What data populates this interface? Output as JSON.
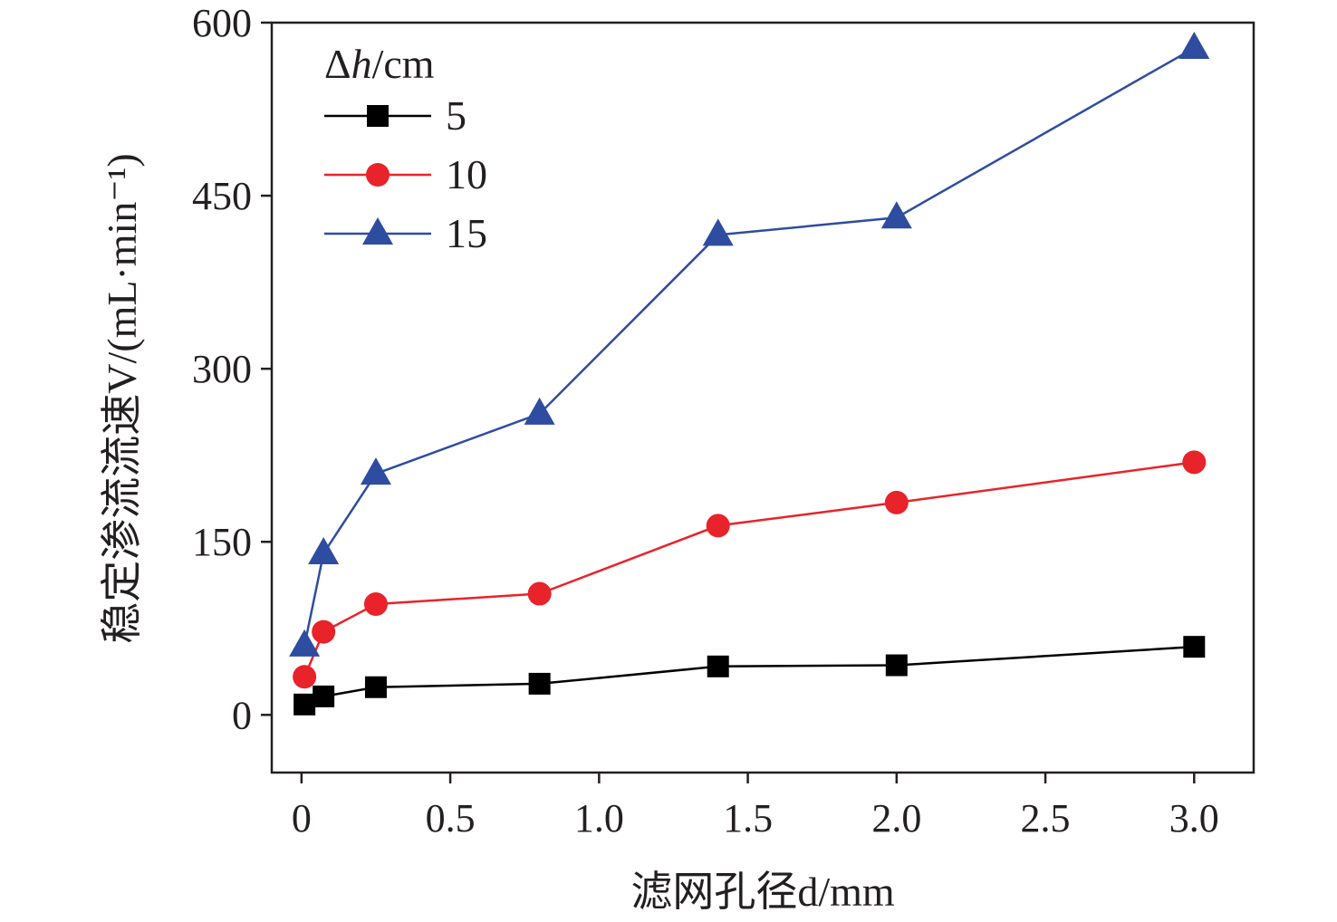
{
  "chart_data": {
    "type": "line",
    "title": "",
    "xlabel": "滤网孔径d/mm",
    "ylabel": "稳定渗流流速V/(mL·min⁻¹)",
    "xlim": [
      -0.1,
      3.2
    ],
    "ylim": [
      -50,
      600
    ],
    "xticks": [
      0,
      0.5,
      1.0,
      1.5,
      2.0,
      2.5,
      3.0
    ],
    "xtick_labels": [
      "0",
      "0.5",
      "1.0",
      "1.5",
      "2.0",
      "2.5",
      "3.0"
    ],
    "yticks": [
      0,
      150,
      300,
      450,
      600
    ],
    "ytick_labels": [
      "0",
      "150",
      "300",
      "450",
      "600"
    ],
    "grid": false,
    "legend": {
      "title": "Δh/cm",
      "position": "top-left"
    },
    "x": [
      0.01,
      0.074,
      0.25,
      0.8,
      1.4,
      2.0,
      3.0
    ],
    "series": [
      {
        "name": "5",
        "marker": "square",
        "color": "#000000",
        "values": [
          9,
          16,
          24,
          27,
          42,
          43,
          59
        ]
      },
      {
        "name": "10",
        "marker": "circle",
        "color": "#e8232a",
        "values": [
          33,
          72,
          96,
          105,
          164,
          184,
          219
        ]
      },
      {
        "name": "15",
        "marker": "triangle",
        "color": "#2e4ca0",
        "values": [
          60,
          140,
          209,
          261,
          416,
          431,
          578
        ]
      }
    ]
  }
}
